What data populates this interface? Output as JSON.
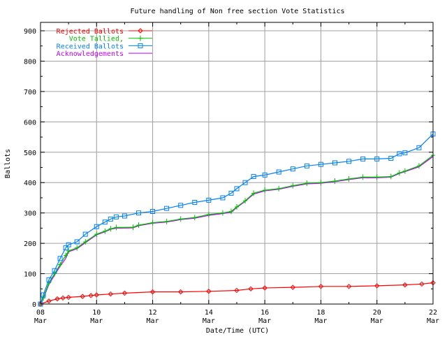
{
  "chart_data": {
    "type": "line",
    "title": "Future handling of Non free section Vote Statistics",
    "xlabel": "Date/Time (UTC)",
    "ylabel": "Ballots",
    "xlim": [
      "08 Mar",
      "22 Mar"
    ],
    "ylim": [
      0,
      930
    ],
    "x_ticks": [
      {
        "day": 0,
        "label": [
          "08",
          "Mar"
        ]
      },
      {
        "day": 2,
        "label": [
          "10",
          "Mar"
        ]
      },
      {
        "day": 4,
        "label": [
          "12",
          "Mar"
        ]
      },
      {
        "day": 6,
        "label": [
          "14",
          "Mar"
        ]
      },
      {
        "day": 8,
        "label": [
          "16",
          "Mar"
        ]
      },
      {
        "day": 10,
        "label": [
          "18",
          "Mar"
        ]
      },
      {
        "day": 12,
        "label": [
          "20",
          "Mar"
        ]
      },
      {
        "day": 14,
        "label": [
          "22",
          "Mar"
        ]
      }
    ],
    "y_ticks": [
      0,
      100,
      200,
      300,
      400,
      500,
      600,
      700,
      800,
      900
    ],
    "grid": true,
    "legend_position": "top-left",
    "x_units_note": "days after 08 Mar",
    "series": [
      {
        "name": "Rejected Ballots",
        "color": "#ff0000",
        "marker": "diamond",
        "points": [
          [
            0,
            0
          ],
          [
            0.3,
            10
          ],
          [
            0.6,
            17
          ],
          [
            0.8,
            20
          ],
          [
            1,
            22
          ],
          [
            1.5,
            25
          ],
          [
            1.8,
            28
          ],
          [
            2,
            30
          ],
          [
            2.5,
            33
          ],
          [
            3,
            36
          ],
          [
            4,
            40
          ],
          [
            5,
            40
          ],
          [
            6,
            42
          ],
          [
            7,
            45
          ],
          [
            7.5,
            50
          ],
          [
            8,
            53
          ],
          [
            9,
            55
          ],
          [
            10,
            58
          ],
          [
            11,
            58
          ],
          [
            12,
            60
          ],
          [
            13,
            63
          ],
          [
            13.6,
            66
          ],
          [
            14,
            70
          ]
        ]
      },
      {
        "name": "Vote Tallied,",
        "color": "#00c000",
        "marker": "plus",
        "points": [
          [
            0,
            0
          ],
          [
            0.1,
            20
          ],
          [
            0.3,
            70
          ],
          [
            0.5,
            100
          ],
          [
            0.7,
            130
          ],
          [
            0.9,
            160
          ],
          [
            1,
            175
          ],
          [
            1.3,
            185
          ],
          [
            1.6,
            205
          ],
          [
            2,
            230
          ],
          [
            2.3,
            240
          ],
          [
            2.5,
            248
          ],
          [
            2.7,
            252
          ],
          [
            3.3,
            253
          ],
          [
            3.5,
            260
          ],
          [
            4,
            268
          ],
          [
            4.5,
            272
          ],
          [
            5,
            280
          ],
          [
            5.5,
            285
          ],
          [
            6,
            295
          ],
          [
            6.5,
            300
          ],
          [
            6.8,
            305
          ],
          [
            7,
            320
          ],
          [
            7.3,
            340
          ],
          [
            7.6,
            365
          ],
          [
            8,
            375
          ],
          [
            8.5,
            380
          ],
          [
            9,
            390
          ],
          [
            9.5,
            398
          ],
          [
            10,
            400
          ],
          [
            10.5,
            405
          ],
          [
            11,
            412
          ],
          [
            11.5,
            418
          ],
          [
            12,
            418
          ],
          [
            12.5,
            420
          ],
          [
            12.8,
            432
          ],
          [
            13,
            438
          ],
          [
            13.5,
            455
          ],
          [
            14,
            490
          ]
        ]
      },
      {
        "name": "Received Ballots",
        "color": "#0080ff",
        "marker": "square",
        "points": [
          [
            0,
            0
          ],
          [
            0.1,
            30
          ],
          [
            0.3,
            80
          ],
          [
            0.5,
            110
          ],
          [
            0.7,
            150
          ],
          [
            0.9,
            185
          ],
          [
            1,
            195
          ],
          [
            1.3,
            205
          ],
          [
            1.6,
            230
          ],
          [
            2,
            255
          ],
          [
            2.3,
            270
          ],
          [
            2.5,
            280
          ],
          [
            2.7,
            287
          ],
          [
            3,
            290
          ],
          [
            3.5,
            300
          ],
          [
            4,
            305
          ],
          [
            4.5,
            315
          ],
          [
            5,
            325
          ],
          [
            5.5,
            335
          ],
          [
            6,
            342
          ],
          [
            6.5,
            350
          ],
          [
            6.8,
            365
          ],
          [
            7,
            380
          ],
          [
            7.3,
            400
          ],
          [
            7.6,
            420
          ],
          [
            8,
            425
          ],
          [
            8.5,
            435
          ],
          [
            9,
            445
          ],
          [
            9.5,
            455
          ],
          [
            10,
            460
          ],
          [
            10.5,
            465
          ],
          [
            11,
            470
          ],
          [
            11.5,
            478
          ],
          [
            12,
            478
          ],
          [
            12.5,
            480
          ],
          [
            12.8,
            495
          ],
          [
            13,
            498
          ],
          [
            13.5,
            515
          ],
          [
            14,
            560
          ]
        ]
      },
      {
        "name": "Acknowledgements",
        "color": "#c000ff",
        "marker": "none",
        "points": [
          [
            0,
            0
          ],
          [
            0.1,
            18
          ],
          [
            0.3,
            65
          ],
          [
            0.5,
            95
          ],
          [
            0.7,
            125
          ],
          [
            0.9,
            150
          ],
          [
            1,
            172
          ],
          [
            1.3,
            182
          ],
          [
            1.6,
            202
          ],
          [
            2,
            228
          ],
          [
            2.3,
            238
          ],
          [
            2.5,
            246
          ],
          [
            2.7,
            250
          ],
          [
            3.3,
            251
          ],
          [
            3.5,
            258
          ],
          [
            4,
            266
          ],
          [
            4.5,
            270
          ],
          [
            5,
            278
          ],
          [
            5.5,
            283
          ],
          [
            6,
            292
          ],
          [
            6.5,
            298
          ],
          [
            6.8,
            302
          ],
          [
            7,
            318
          ],
          [
            7.3,
            338
          ],
          [
            7.6,
            362
          ],
          [
            8,
            373
          ],
          [
            8.5,
            378
          ],
          [
            9,
            388
          ],
          [
            9.5,
            396
          ],
          [
            10,
            398
          ],
          [
            10.5,
            403
          ],
          [
            11,
            410
          ],
          [
            11.5,
            416
          ],
          [
            12,
            416
          ],
          [
            12.5,
            418
          ],
          [
            12.8,
            430
          ],
          [
            13,
            436
          ],
          [
            13.5,
            452
          ],
          [
            14,
            486
          ]
        ]
      }
    ]
  }
}
